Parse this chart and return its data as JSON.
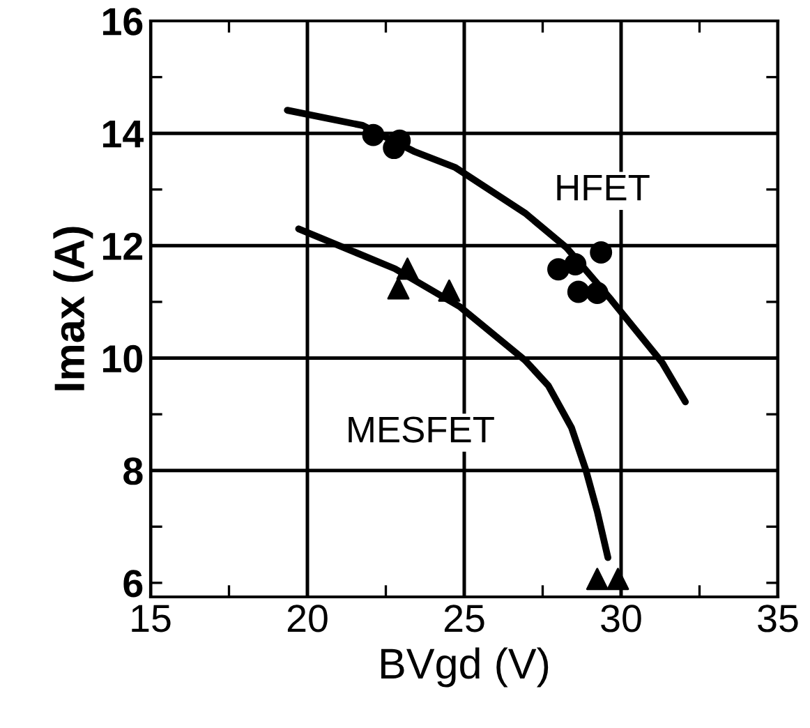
{
  "chart_data": {
    "type": "scatter",
    "xlabel": "BVgd (V)",
    "ylabel": "Imax (A)",
    "xlim": [
      15,
      35
    ],
    "ylim": [
      5.75,
      16
    ],
    "xticks": [
      15,
      {
        "value": 17.5,
        "label": null
      },
      20,
      {
        "value": 22.5,
        "label": null
      },
      25,
      {
        "value": 27.5,
        "label": null
      },
      30,
      {
        "value": 32.5,
        "label": null
      },
      35
    ],
    "yticks": [
      6,
      {
        "value": 7,
        "label": null
      },
      8,
      {
        "value": 9,
        "label": null
      },
      10,
      {
        "value": 11,
        "label": null
      },
      12,
      {
        "value": 13,
        "label": null
      },
      14,
      {
        "value": 15,
        "label": null
      },
      16
    ],
    "grid": true,
    "legend": false,
    "series": [
      {
        "marker": "circle",
        "color": "#000000",
        "x": [
          22.1,
          22.76,
          22.94,
          28.0,
          28.54,
          29.36,
          28.64,
          29.24
        ],
        "values": [
          13.97,
          13.74,
          13.87,
          11.58,
          11.67,
          11.88,
          11.18,
          11.16
        ]
      },
      {
        "marker": "triangle",
        "color": "#000000",
        "x": [
          23.19,
          22.9,
          24.52,
          29.24,
          29.9
        ],
        "values": [
          11.59,
          11.24,
          11.2,
          6.07,
          6.07
        ]
      },
      {
        "type": "line",
        "marker": "none",
        "line_style": "solid",
        "color": "#000000",
        "x": [
          19.36,
          21.76,
          23.39,
          24.72,
          26.94,
          28.27,
          29.68,
          31.31,
          32.05
        ],
        "values": [
          14.41,
          14.14,
          13.68,
          13.39,
          12.58,
          11.96,
          11.04,
          9.92,
          9.22
        ]
      },
      {
        "type": "line",
        "marker": "none",
        "line_style": "solid",
        "color": "#000000",
        "x": [
          19.72,
          22.79,
          24.87,
          26.94,
          27.68,
          28.42,
          28.87,
          29.24,
          29.58
        ],
        "values": [
          12.3,
          11.59,
          10.91,
          9.96,
          9.51,
          8.76,
          8.02,
          7.27,
          6.45
        ]
      }
    ],
    "annotations": [
      "HFET",
      "MESFET"
    ]
  }
}
